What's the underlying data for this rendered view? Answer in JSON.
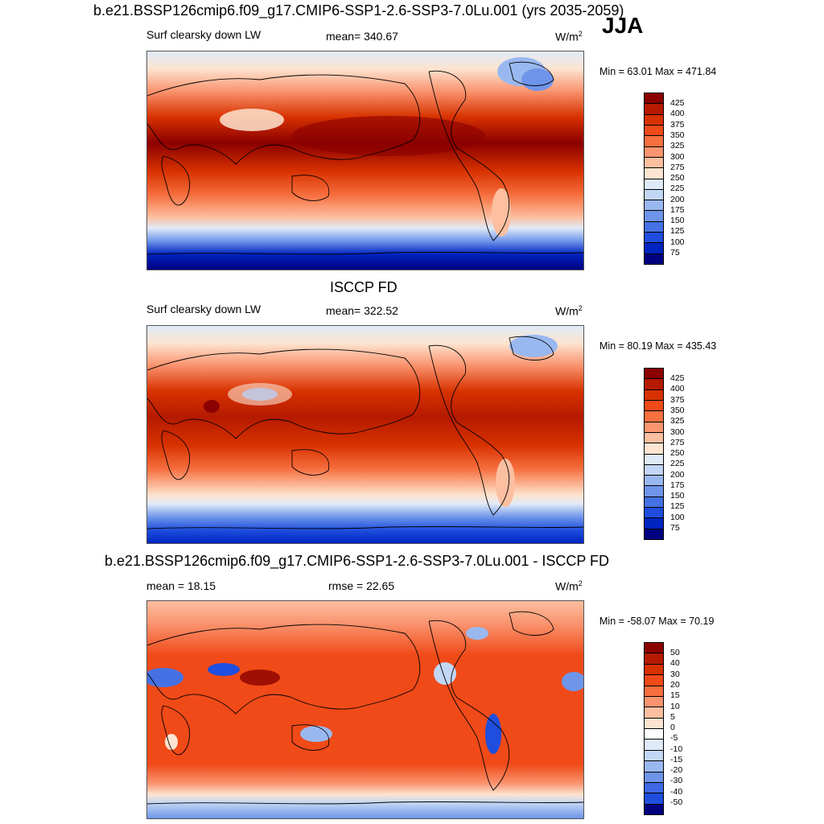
{
  "title": "b.e21.BSSP126cmip6.f09_g17.CMIP6-SSP1-2.6-SSP3-7.0Lu.001 (yrs 2035-2059)",
  "season": "JJA",
  "panels": [
    {
      "variable": "Surf clearsky down LW",
      "stat": "mean= 340.67",
      "units_base": "W/m",
      "units_exp": "2",
      "minmax": "Min =  63.01 Max = 471.84",
      "colorbar_labels": [
        "425",
        "400",
        "375",
        "350",
        "325",
        "300",
        "275",
        "250",
        "225",
        "200",
        "175",
        "150",
        "125",
        "100",
        "75"
      ],
      "colorbar_colors": [
        "#8b0000",
        "#b51a00",
        "#d83200",
        "#f04a18",
        "#f77040",
        "#fa9570",
        "#fcbfa0",
        "#fde4d0",
        "#dfeaf8",
        "#c2d6f5",
        "#9ab8f0",
        "#6e95ea",
        "#4671e4",
        "#1f4ede",
        "#0024bf",
        "#000080"
      ]
    },
    {
      "section_title": "ISCCP FD",
      "variable": "Surf clearsky down LW",
      "stat": "mean= 322.52",
      "units_base": "W/m",
      "units_exp": "2",
      "minmax": "Min =  80.19 Max = 435.43",
      "colorbar_labels": [
        "425",
        "400",
        "375",
        "350",
        "325",
        "300",
        "275",
        "250",
        "225",
        "200",
        "175",
        "150",
        "125",
        "100",
        "75"
      ],
      "colorbar_colors": [
        "#8b0000",
        "#b51a00",
        "#d83200",
        "#f04a18",
        "#f77040",
        "#fa9570",
        "#fcbfa0",
        "#fde4d0",
        "#dfeaf8",
        "#c2d6f5",
        "#9ab8f0",
        "#6e95ea",
        "#4671e4",
        "#1f4ede",
        "#0024bf",
        "#000080"
      ]
    },
    {
      "section_title": "b.e21.BSSP126cmip6.f09_g17.CMIP6-SSP1-2.6-SSP3-7.0Lu.001 - ISCCP FD",
      "stat_left": "mean =  18.15",
      "stat": "rmse =  22.65",
      "units_base": "W/m",
      "units_exp": "2",
      "minmax": "Min = -58.07 Max =  70.19",
      "colorbar_labels": [
        "50",
        "40",
        "30",
        "20",
        "15",
        "10",
        "5",
        "0",
        "-5",
        "-10",
        "-15",
        "-20",
        "-30",
        "-40",
        "-50"
      ],
      "colorbar_colors": [
        "#8b0000",
        "#b51a00",
        "#d83200",
        "#f04a18",
        "#f77040",
        "#fa9570",
        "#fcbfa0",
        "#fde4d0",
        "#ffffff",
        "#dfeaf8",
        "#c2d6f5",
        "#9ab8f0",
        "#6e95ea",
        "#3f68e2",
        "#1f4ede",
        "#000080"
      ]
    }
  ]
}
